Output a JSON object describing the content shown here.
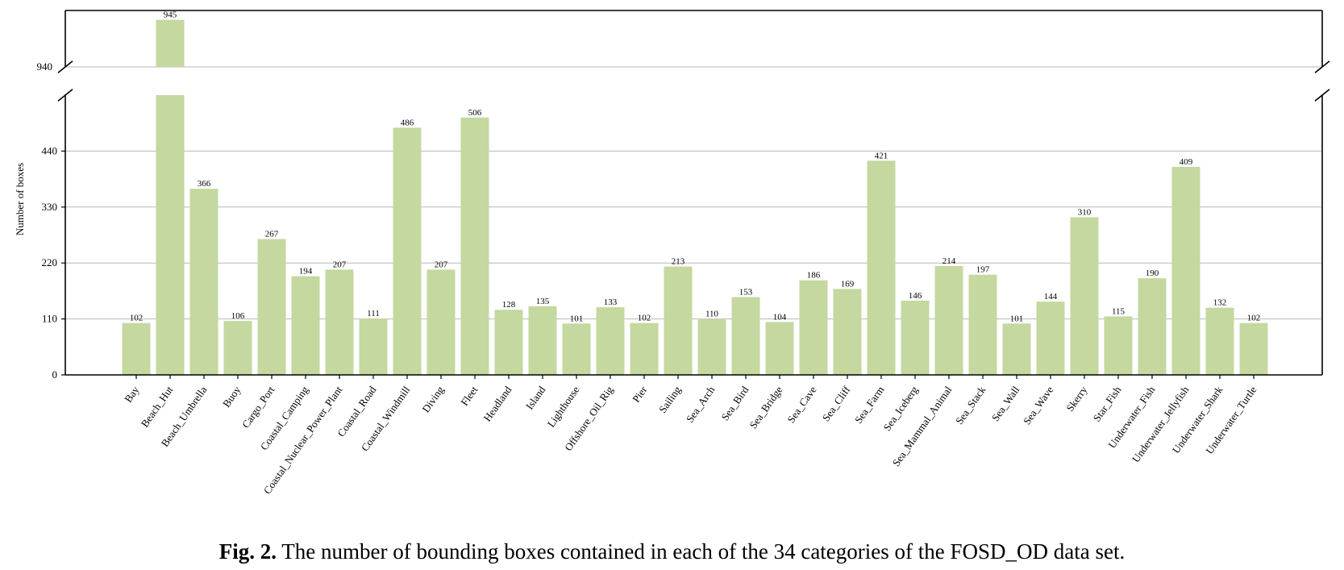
{
  "chart_data": {
    "type": "bar",
    "ylabel": "Number of boxes",
    "categories": [
      "Bay",
      "Beach_Hut",
      "Beach_Umbrella",
      "Buoy",
      "Cargo_Port",
      "Coastal_Camping",
      "Coastal_Nuclear_Power_Plant",
      "Coastal_Road",
      "Coastal_Windmill",
      "Diving",
      "Fleet",
      "Headland",
      "Island",
      "Lighthouse",
      "Offshore_Oil_Rig",
      "Pier",
      "Sailing",
      "Sea_Arch",
      "Sea_Bird",
      "Sea_Bridge",
      "Sea_Cave",
      "Sea_Cliff",
      "Sea_Farm",
      "Sea_Iceberg",
      "Sea_Mammal_Animal",
      "Sea_Stack",
      "Sea_Wall",
      "Sea_Wave",
      "Skerry",
      "Star_Fish",
      "Underwater_Fish",
      "Underwater_Jellyfish",
      "Underwater_Shark",
      "Underwater_Turtle"
    ],
    "values": [
      102,
      945,
      366,
      106,
      267,
      194,
      207,
      111,
      486,
      207,
      506,
      128,
      135,
      101,
      133,
      102,
      213,
      110,
      153,
      104,
      186,
      169,
      421,
      146,
      214,
      197,
      101,
      144,
      310,
      115,
      190,
      409,
      132,
      102
    ],
    "bar_color": "#c4d8a0",
    "axis_break": true,
    "lower_segment": {
      "ylim": [
        0,
        550
      ],
      "yticks": [
        0,
        110,
        220,
        330,
        440
      ]
    },
    "upper_segment": {
      "ylim": [
        940,
        946
      ],
      "yticks": [
        940
      ]
    },
    "grid": "horizontal",
    "legend": "none"
  },
  "caption": {
    "label": "Fig. 2.",
    "text": " The number of bounding boxes contained in each of the 34 categories of the FOSD_OD data set."
  }
}
